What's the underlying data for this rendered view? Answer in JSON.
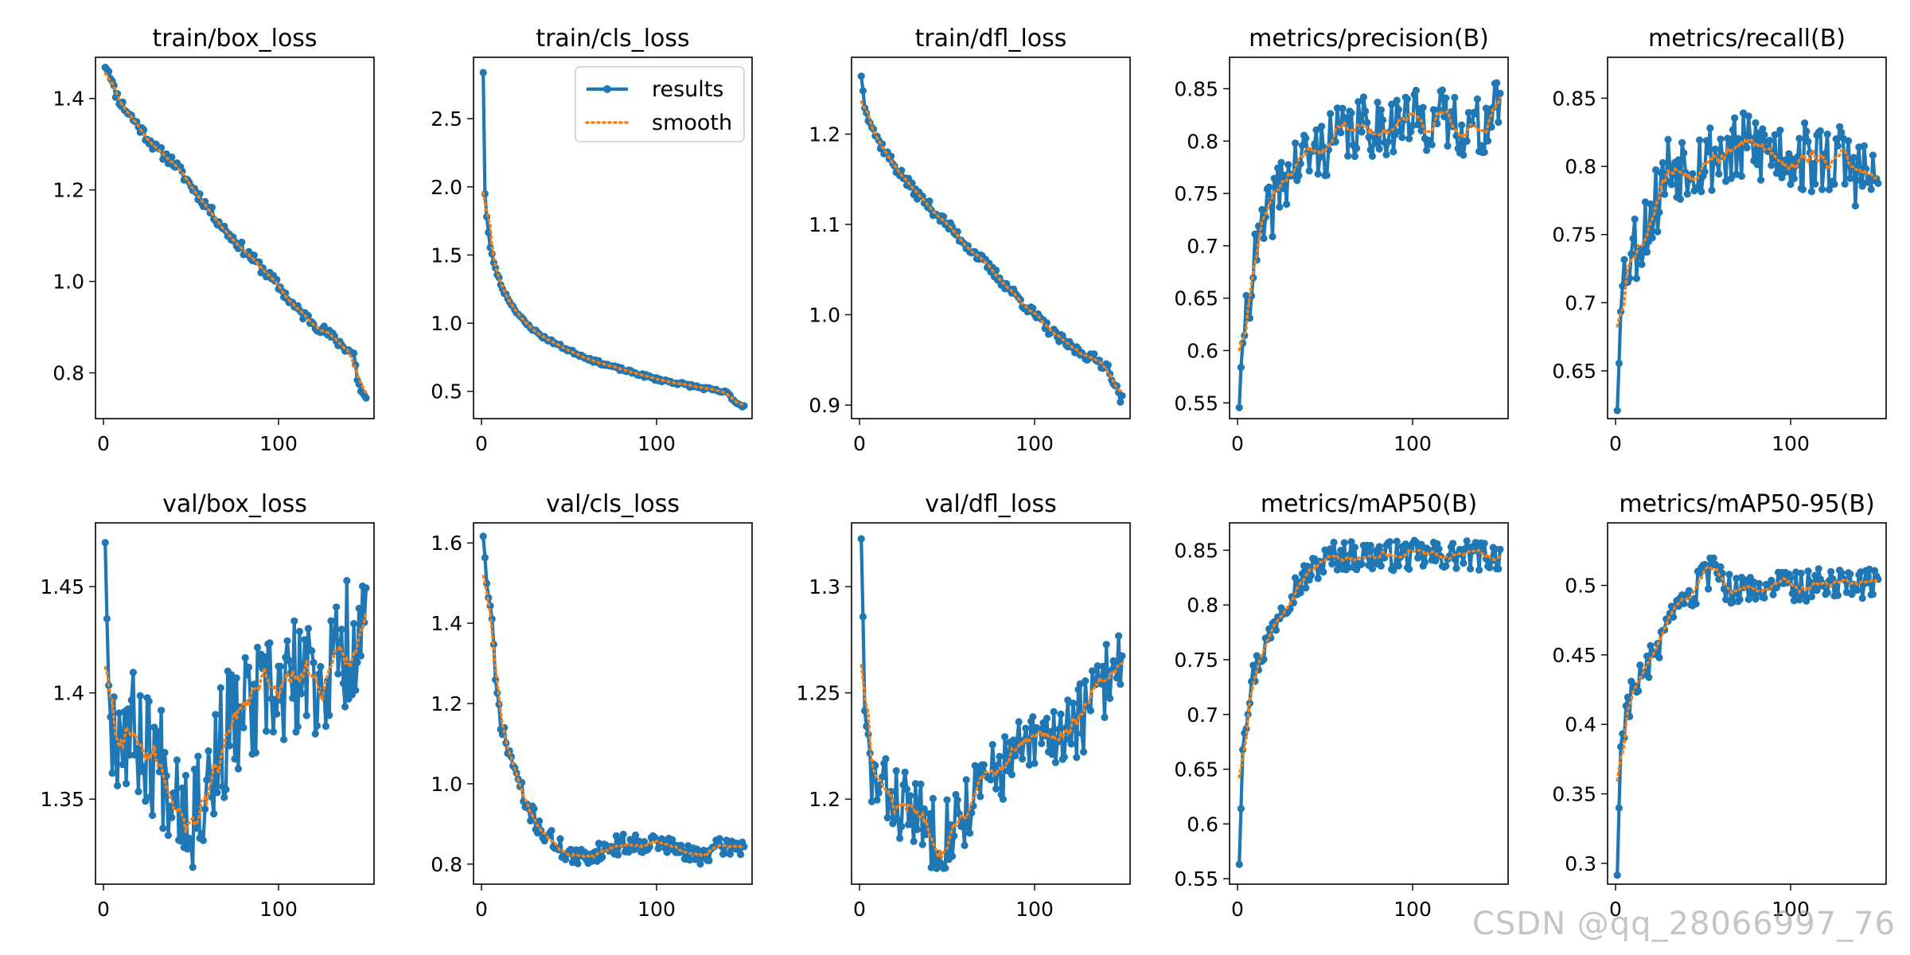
{
  "figure": {
    "legend": {
      "results_label": "results",
      "smooth_label": "smooth"
    },
    "watermark": "CSDN @qq_28066997_76",
    "colors": {
      "results": "#1f77b4",
      "smooth": "#ff7f0e"
    }
  },
  "chart_data": [
    {
      "type": "line",
      "title": "train/box_loss",
      "x_range": [
        0,
        150
      ],
      "xticks": [
        0,
        100
      ],
      "yticks": [
        0.8,
        1.0,
        1.2,
        1.4
      ],
      "ylim": [
        0.7,
        1.49
      ],
      "anchors": [
        [
          1,
          1.47
        ],
        [
          3,
          1.46
        ],
        [
          6,
          1.42
        ],
        [
          10,
          1.39
        ],
        [
          20,
          1.34
        ],
        [
          30,
          1.29
        ],
        [
          40,
          1.26
        ],
        [
          50,
          1.21
        ],
        [
          60,
          1.16
        ],
        [
          70,
          1.11
        ],
        [
          80,
          1.07
        ],
        [
          90,
          1.03
        ],
        [
          100,
          0.99
        ],
        [
          110,
          0.94
        ],
        [
          120,
          0.91
        ],
        [
          130,
          0.88
        ],
        [
          140,
          0.85
        ],
        [
          143,
          0.84
        ],
        [
          145,
          0.79
        ],
        [
          147,
          0.76
        ],
        [
          150,
          0.74
        ]
      ],
      "noise": 0.012,
      "seed": 11
    },
    {
      "type": "line",
      "title": "train/cls_loss",
      "x_range": [
        0,
        150
      ],
      "xticks": [
        0,
        100
      ],
      "yticks": [
        0.5,
        1.0,
        1.5,
        2.0,
        2.5
      ],
      "ylim": [
        0.3,
        2.95
      ],
      "legend": "top-right",
      "anchors": [
        [
          1,
          2.84
        ],
        [
          2,
          1.95
        ],
        [
          3,
          1.78
        ],
        [
          5,
          1.55
        ],
        [
          8,
          1.4
        ],
        [
          12,
          1.25
        ],
        [
          18,
          1.12
        ],
        [
          25,
          1.0
        ],
        [
          35,
          0.9
        ],
        [
          50,
          0.8
        ],
        [
          65,
          0.72
        ],
        [
          80,
          0.66
        ],
        [
          100,
          0.59
        ],
        [
          120,
          0.54
        ],
        [
          140,
          0.49
        ],
        [
          142,
          0.47
        ],
        [
          145,
          0.42
        ],
        [
          150,
          0.39
        ]
      ],
      "noise": 0.012,
      "seed": 23
    },
    {
      "type": "line",
      "title": "train/dfl_loss",
      "x_range": [
        0,
        150
      ],
      "xticks": [
        0,
        100
      ],
      "yticks": [
        0.9,
        1.0,
        1.1,
        1.2
      ],
      "ylim": [
        0.885,
        1.285
      ],
      "anchors": [
        [
          1,
          1.265
        ],
        [
          3,
          1.23
        ],
        [
          6,
          1.215
        ],
        [
          10,
          1.195
        ],
        [
          20,
          1.165
        ],
        [
          30,
          1.14
        ],
        [
          40,
          1.12
        ],
        [
          50,
          1.1
        ],
        [
          60,
          1.08
        ],
        [
          70,
          1.06
        ],
        [
          80,
          1.04
        ],
        [
          90,
          1.02
        ],
        [
          100,
          1.0
        ],
        [
          110,
          0.98
        ],
        [
          120,
          0.965
        ],
        [
          130,
          0.955
        ],
        [
          140,
          0.945
        ],
        [
          143,
          0.94
        ],
        [
          146,
          0.92
        ],
        [
          150,
          0.905
        ]
      ],
      "noise": 0.006,
      "seed": 37
    },
    {
      "type": "line",
      "title": "metrics/precision(B)",
      "x_range": [
        0,
        150
      ],
      "xticks": [
        0,
        100
      ],
      "yticks": [
        0.55,
        0.6,
        0.65,
        0.7,
        0.75,
        0.8,
        0.85
      ],
      "ylim": [
        0.535,
        0.88
      ],
      "anchors": [
        [
          1,
          0.55
        ],
        [
          3,
          0.6
        ],
        [
          5,
          0.64
        ],
        [
          8,
          0.67
        ],
        [
          12,
          0.7
        ],
        [
          18,
          0.73
        ],
        [
          25,
          0.76
        ],
        [
          35,
          0.78
        ],
        [
          45,
          0.79
        ],
        [
          55,
          0.8
        ],
        [
          65,
          0.81
        ],
        [
          80,
          0.815
        ],
        [
          100,
          0.82
        ],
        [
          120,
          0.82
        ],
        [
          140,
          0.81
        ],
        [
          150,
          0.84
        ]
      ],
      "noise": 0.03,
      "seed": 41
    },
    {
      "type": "line",
      "title": "metrics/recall(B)",
      "x_range": [
        0,
        150
      ],
      "xticks": [
        0,
        100
      ],
      "yticks": [
        0.65,
        0.7,
        0.75,
        0.8,
        0.85
      ],
      "ylim": [
        0.615,
        0.88
      ],
      "anchors": [
        [
          1,
          0.625
        ],
        [
          3,
          0.7
        ],
        [
          6,
          0.73
        ],
        [
          10,
          0.74
        ],
        [
          15,
          0.75
        ],
        [
          22,
          0.77
        ],
        [
          30,
          0.8
        ],
        [
          40,
          0.805
        ],
        [
          50,
          0.805
        ],
        [
          60,
          0.81
        ],
        [
          70,
          0.81
        ],
        [
          80,
          0.815
        ],
        [
          90,
          0.81
        ],
        [
          100,
          0.81
        ],
        [
          110,
          0.805
        ],
        [
          120,
          0.805
        ],
        [
          130,
          0.805
        ],
        [
          140,
          0.795
        ],
        [
          150,
          0.785
        ]
      ],
      "noise": 0.028,
      "seed": 53
    },
    {
      "type": "line",
      "title": "val/box_loss",
      "x_range": [
        0,
        150
      ],
      "xticks": [
        0,
        100
      ],
      "yticks": [
        1.35,
        1.4,
        1.45
      ],
      "ylim": [
        1.31,
        1.48
      ],
      "anchors": [
        [
          1,
          1.475
        ],
        [
          3,
          1.4
        ],
        [
          6,
          1.385
        ],
        [
          10,
          1.385
        ],
        [
          20,
          1.38
        ],
        [
          30,
          1.37
        ],
        [
          40,
          1.36
        ],
        [
          50,
          1.345
        ],
        [
          60,
          1.36
        ],
        [
          70,
          1.38
        ],
        [
          80,
          1.39
        ],
        [
          90,
          1.395
        ],
        [
          100,
          1.4
        ],
        [
          110,
          1.405
        ],
        [
          120,
          1.405
        ],
        [
          130,
          1.41
        ],
        [
          140,
          1.425
        ],
        [
          150,
          1.43
        ]
      ],
      "noise": 0.03,
      "seed": 67
    },
    {
      "type": "line",
      "title": "val/cls_loss",
      "x_range": [
        0,
        150
      ],
      "xticks": [
        0,
        100
      ],
      "yticks": [
        0.8,
        1.0,
        1.2,
        1.4,
        1.6
      ],
      "ylim": [
        0.75,
        1.65
      ],
      "anchors": [
        [
          1,
          1.62
        ],
        [
          3,
          1.5
        ],
        [
          6,
          1.4
        ],
        [
          8,
          1.25
        ],
        [
          12,
          1.13
        ],
        [
          18,
          1.05
        ],
        [
          25,
          0.95
        ],
        [
          35,
          0.88
        ],
        [
          45,
          0.84
        ],
        [
          55,
          0.81
        ],
        [
          65,
          0.83
        ],
        [
          80,
          0.85
        ],
        [
          100,
          0.855
        ],
        [
          110,
          0.84
        ],
        [
          120,
          0.82
        ],
        [
          130,
          0.83
        ],
        [
          140,
          0.845
        ],
        [
          150,
          0.845
        ]
      ],
      "noise": 0.025,
      "seed": 71
    },
    {
      "type": "line",
      "title": "val/dfl_loss",
      "x_range": [
        0,
        150
      ],
      "xticks": [
        0,
        100
      ],
      "yticks": [
        1.2,
        1.25,
        1.3
      ],
      "ylim": [
        1.16,
        1.33
      ],
      "anchors": [
        [
          1,
          1.325
        ],
        [
          3,
          1.24
        ],
        [
          6,
          1.215
        ],
        [
          10,
          1.205
        ],
        [
          20,
          1.2
        ],
        [
          30,
          1.195
        ],
        [
          40,
          1.185
        ],
        [
          50,
          1.185
        ],
        [
          60,
          1.195
        ],
        [
          70,
          1.205
        ],
        [
          80,
          1.215
        ],
        [
          90,
          1.22
        ],
        [
          100,
          1.225
        ],
        [
          110,
          1.23
        ],
        [
          120,
          1.235
        ],
        [
          130,
          1.24
        ],
        [
          140,
          1.255
        ],
        [
          150,
          1.27
        ]
      ],
      "noise": 0.018,
      "seed": 83
    },
    {
      "type": "line",
      "title": "metrics/mAP50(B)",
      "x_range": [
        0,
        150
      ],
      "xticks": [
        0,
        100
      ],
      "yticks": [
        0.55,
        0.6,
        0.65,
        0.7,
        0.75,
        0.8,
        0.85
      ],
      "ylim": [
        0.545,
        0.875
      ],
      "anchors": [
        [
          1,
          0.565
        ],
        [
          3,
          0.67
        ],
        [
          5,
          0.7
        ],
        [
          8,
          0.73
        ],
        [
          12,
          0.75
        ],
        [
          18,
          0.77
        ],
        [
          25,
          0.8
        ],
        [
          35,
          0.82
        ],
        [
          45,
          0.835
        ],
        [
          55,
          0.845
        ],
        [
          70,
          0.845
        ],
        [
          90,
          0.845
        ],
        [
          110,
          0.845
        ],
        [
          130,
          0.845
        ],
        [
          150,
          0.845
        ]
      ],
      "noise": 0.014,
      "seed": 97
    },
    {
      "type": "line",
      "title": "metrics/mAP50-95(B)",
      "x_range": [
        0,
        150
      ],
      "xticks": [
        0,
        100
      ],
      "yticks": [
        0.3,
        0.35,
        0.4,
        0.45,
        0.5
      ],
      "ylim": [
        0.285,
        0.545
      ],
      "anchors": [
        [
          1,
          0.293
        ],
        [
          3,
          0.385
        ],
        [
          6,
          0.41
        ],
        [
          10,
          0.425
        ],
        [
          18,
          0.44
        ],
        [
          28,
          0.465
        ],
        [
          38,
          0.485
        ],
        [
          48,
          0.5
        ],
        [
          55,
          0.51
        ],
        [
          62,
          0.5
        ],
        [
          70,
          0.495
        ],
        [
          90,
          0.5
        ],
        [
          110,
          0.5
        ],
        [
          130,
          0.505
        ],
        [
          150,
          0.5
        ]
      ],
      "noise": 0.012,
      "seed": 103
    }
  ]
}
